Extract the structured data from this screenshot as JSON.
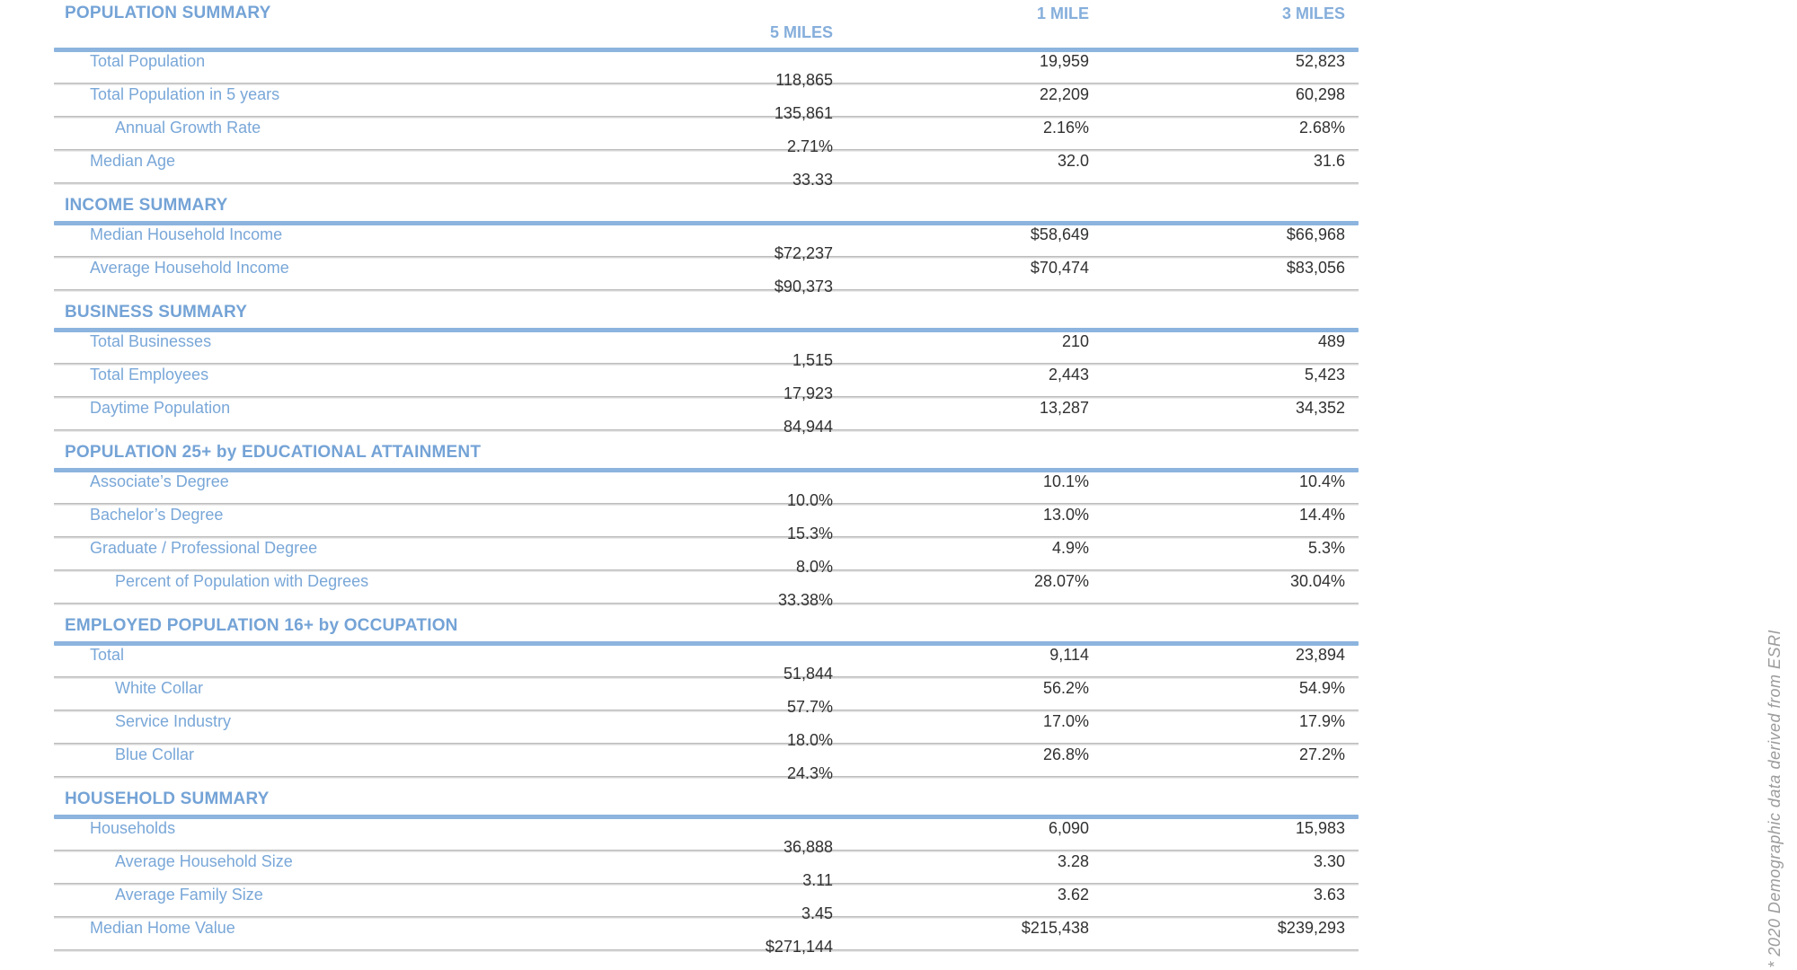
{
  "columns": [
    "1 MILE",
    "3 MILES",
    "5 MILES"
  ],
  "sections": [
    {
      "title": "POPULATION SUMMARY",
      "rows": [
        {
          "label": "Total Population",
          "indent": 0,
          "values": [
            "19,959",
            "52,823",
            "118,865"
          ]
        },
        {
          "label": "Total Population in 5 years",
          "indent": 0,
          "values": [
            "22,209",
            "60,298",
            "135,861"
          ]
        },
        {
          "label": "Annual Growth Rate",
          "indent": 1,
          "values": [
            "2.16%",
            "2.68%",
            "2.71%"
          ]
        },
        {
          "label": "Median Age",
          "indent": 0,
          "values": [
            "32.0",
            "31.6",
            "33.33"
          ]
        }
      ]
    },
    {
      "title": "INCOME SUMMARY",
      "rows": [
        {
          "label": "Median Household Income",
          "indent": 0,
          "values": [
            "$58,649",
            "$66,968",
            "$72,237"
          ]
        },
        {
          "label": "Average Household Income",
          "indent": 0,
          "values": [
            "$70,474",
            "$83,056",
            "$90,373"
          ]
        }
      ]
    },
    {
      "title": "BUSINESS SUMMARY",
      "rows": [
        {
          "label": "Total Businesses",
          "indent": 0,
          "values": [
            "210",
            "489",
            "1,515"
          ]
        },
        {
          "label": "Total Employees",
          "indent": 0,
          "values": [
            "2,443",
            "5,423",
            "17,923"
          ]
        },
        {
          "label": "Daytime Population",
          "indent": 0,
          "values": [
            "13,287",
            "34,352",
            "84,944"
          ]
        }
      ]
    },
    {
      "title": "POPULATION 25+ by EDUCATIONAL ATTAINMENT",
      "rows": [
        {
          "label": "Associate’s Degree",
          "indent": 0,
          "values": [
            "10.1%",
            "10.4%",
            "10.0%"
          ]
        },
        {
          "label": "Bachelor’s Degree",
          "indent": 0,
          "values": [
            "13.0%",
            "14.4%",
            "15.3%"
          ]
        },
        {
          "label": "Graduate / Professional Degree",
          "indent": 0,
          "values": [
            "4.9%",
            "5.3%",
            "8.0%"
          ]
        },
        {
          "label": "Percent of Population with Degrees",
          "indent": 1,
          "values": [
            "28.07%",
            "30.04%",
            "33.38%"
          ]
        }
      ]
    },
    {
      "title": "EMPLOYED POPULATION 16+ by OCCUPATION",
      "rows": [
        {
          "label": "Total",
          "indent": 0,
          "values": [
            "9,114",
            "23,894",
            "51,844"
          ]
        },
        {
          "label": "White Collar",
          "indent": 1,
          "values": [
            "56.2%",
            "54.9%",
            "57.7%"
          ]
        },
        {
          "label": "Service Industry",
          "indent": 1,
          "values": [
            "17.0%",
            "17.9%",
            "18.0%"
          ]
        },
        {
          "label": "Blue Collar",
          "indent": 1,
          "values": [
            "26.8%",
            "27.2%",
            "24.3%"
          ]
        }
      ]
    },
    {
      "title": "HOUSEHOLD SUMMARY",
      "rows": [
        {
          "label": "Households",
          "indent": 0,
          "values": [
            "6,090",
            "15,983",
            "36,888"
          ]
        },
        {
          "label": "Average Household Size",
          "indent": 1,
          "values": [
            "3.28",
            "3.30",
            "3.11"
          ]
        },
        {
          "label": "Average Family Size",
          "indent": 1,
          "values": [
            "3.62",
            "3.63",
            "3.45"
          ]
        },
        {
          "label": "Median Home Value",
          "indent": 0,
          "values": [
            "$215,438",
            "$239,293",
            "$271,144"
          ]
        }
      ]
    }
  ],
  "footnote": "* 2020 Demographic data derived from ESRI",
  "colors": {
    "accent_blue_text": "#74A3D6",
    "accent_blue_line": "#8CB4DE",
    "row_label_blue": "#79A7D8",
    "value_text": "#313131",
    "separator_gray": "#BDBDBD",
    "footnote_gray": "#9C9C9C"
  }
}
